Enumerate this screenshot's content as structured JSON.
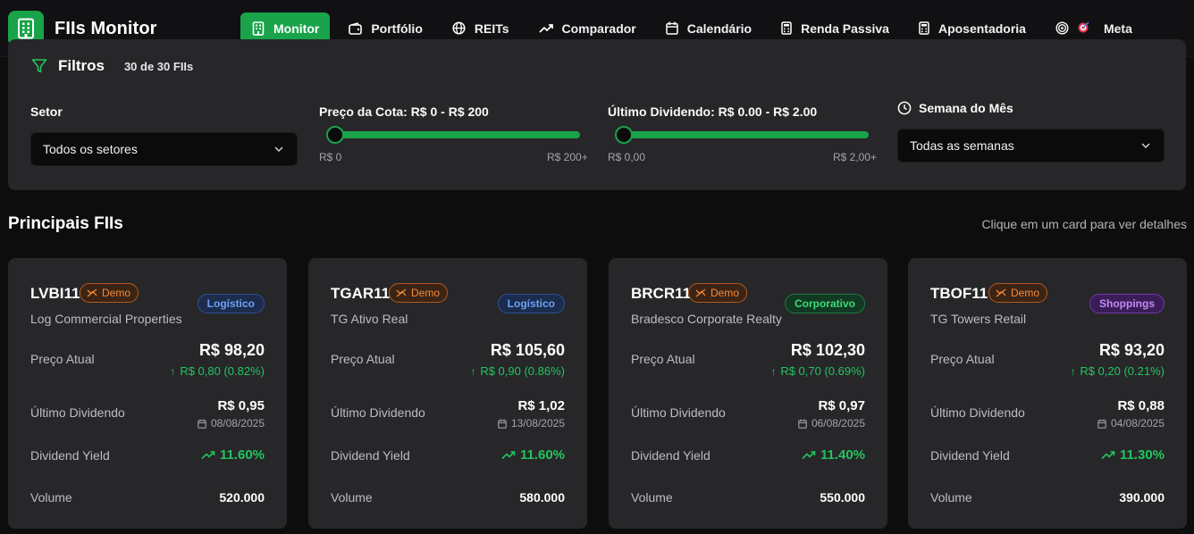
{
  "app": {
    "title": "FIIs Monitor"
  },
  "nav": [
    {
      "label": "Monitor",
      "icon": "building-icon",
      "active": true
    },
    {
      "label": "Portfólio",
      "icon": "wallet-icon",
      "active": false
    },
    {
      "label": "REITs",
      "icon": "globe-icon",
      "active": false
    },
    {
      "label": "Comparador",
      "icon": "trending-up-icon",
      "active": false
    },
    {
      "label": "Calendário",
      "icon": "calendar-icon",
      "active": false
    },
    {
      "label": "Renda Passiva",
      "icon": "calculator-icon",
      "active": false
    },
    {
      "label": "Aposentadoria",
      "icon": "calculator-icon",
      "active": false
    },
    {
      "label": "Meta",
      "icon": "target-icon",
      "active": false
    }
  ],
  "filters": {
    "title": "Filtros",
    "count": "30 de 30 FIIs",
    "sector": {
      "label": "Setor",
      "value": "Todos os setores"
    },
    "price": {
      "label": "Preço da Cota: R$ 0 - R$ 200",
      "min_label": "R$ 0",
      "max_label": "R$ 200+",
      "low": 0,
      "high": 200
    },
    "dividend": {
      "label": "Último Dividendo: R$ 0.00 - R$ 2.00",
      "min_label": "R$ 0,00",
      "max_label": "R$ 2,00+",
      "low": 0,
      "high": 2
    },
    "week": {
      "label": "Semana do Mês",
      "value": "Todas as semanas"
    }
  },
  "section": {
    "title": "Principais FIIs",
    "hint": "Clique em um card para ver detalhes"
  },
  "labels": {
    "demo": "Demo",
    "price": "Preço Atual",
    "last_dividend": "Último Dividendo",
    "dividend_yield": "Dividend Yield",
    "volume": "Volume"
  },
  "cards": [
    {
      "ticker": "LVBI11",
      "name": "Log Commercial Properties",
      "sector": "Logístico",
      "sector_class": "log",
      "price": "R$ 98,20",
      "change": "R$ 0,80 (0.82%)",
      "dividend": "R$ 0,95",
      "dividend_date": "08/08/2025",
      "dy": "11.60%",
      "volume": "520.000"
    },
    {
      "ticker": "TGAR11",
      "name": "TG Ativo Real",
      "sector": "Logístico",
      "sector_class": "log",
      "price": "R$ 105,60",
      "change": "R$ 0,90 (0.86%)",
      "dividend": "R$ 1,02",
      "dividend_date": "13/08/2025",
      "dy": "11.60%",
      "volume": "580.000"
    },
    {
      "ticker": "BRCR11",
      "name": "Bradesco Corporate Realty",
      "sector": "Corporativo",
      "sector_class": "corp",
      "price": "R$ 102,30",
      "change": "R$ 0,70 (0.69%)",
      "dividend": "R$ 0,97",
      "dividend_date": "06/08/2025",
      "dy": "11.40%",
      "volume": "550.000"
    },
    {
      "ticker": "TBOF11",
      "name": "TG Towers Retail",
      "sector": "Shoppings",
      "sector_class": "shop",
      "price": "R$ 93,20",
      "change": "R$ 0,20 (0.21%)",
      "dividend": "R$ 0,88",
      "dividend_date": "04/08/2025",
      "dy": "11.30%",
      "volume": "390.000"
    }
  ],
  "colors": {
    "accent": "#19a34a",
    "positive": "#22c55e",
    "demo": "#f08a3c",
    "card_bg": "#27272a",
    "page_bg": "#0d0d0e"
  }
}
